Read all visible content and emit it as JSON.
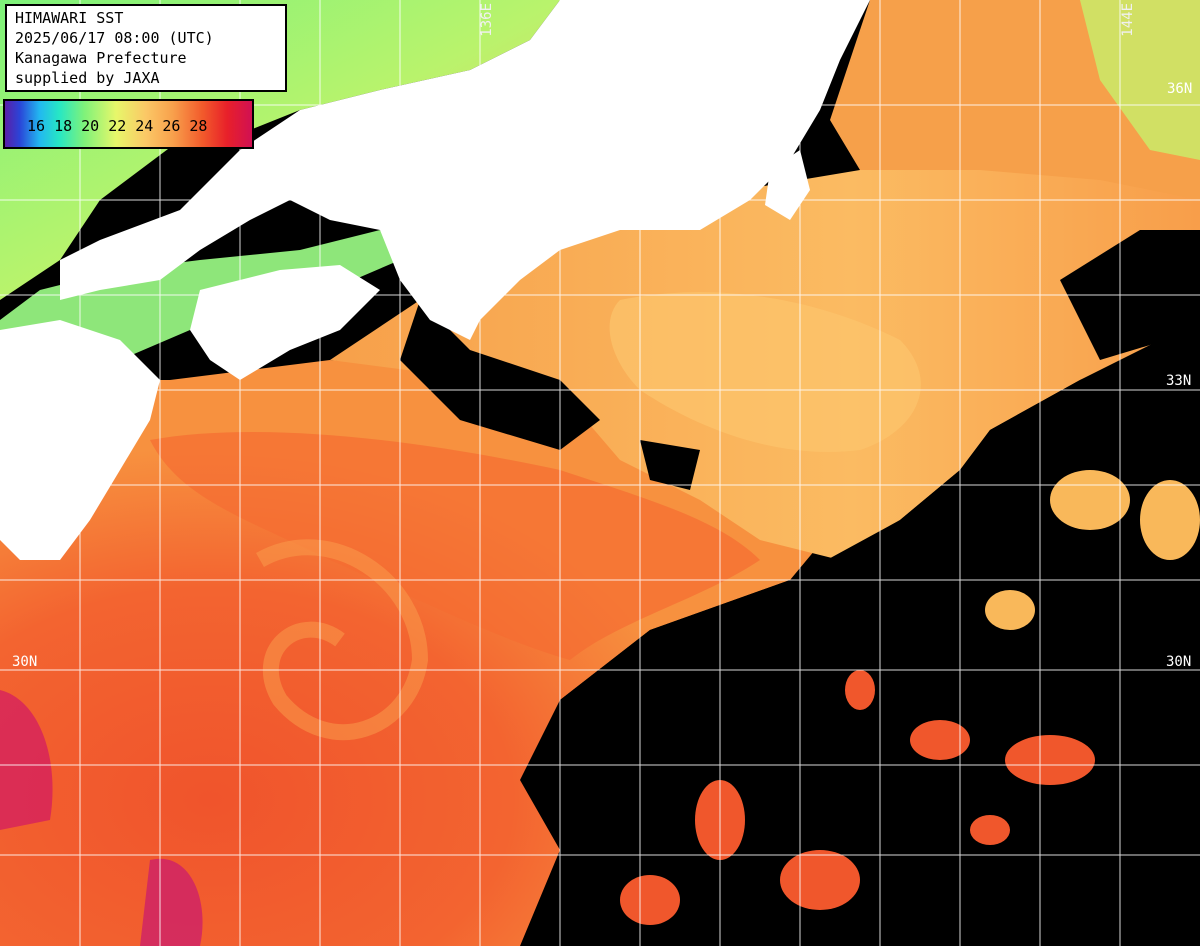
{
  "info": {
    "line1": "HIMAWARI SST",
    "line2": "2025/06/17 08:00 (UTC)",
    "line3": "Kanagawa Prefecture",
    "line4": "supplied by JAXA"
  },
  "colorscale": {
    "unit": "",
    "ticks": [
      "16",
      "18",
      "20",
      "22",
      "24",
      "26",
      "28"
    ]
  },
  "graticule": {
    "lon_labels": [
      "136E",
      "144E"
    ],
    "lat_labels": [
      "33N",
      "30N",
      "30N"
    ],
    "partial_label": "36N"
  },
  "colors": {
    "land": "#ffffff",
    "no_data": "#000000",
    "grid": "#ffffff"
  }
}
